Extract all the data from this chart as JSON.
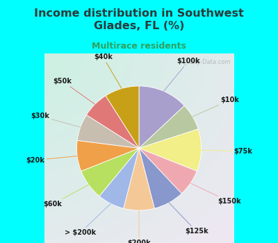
{
  "title": "Income distribution in Southwest\nGlades, FL (%)",
  "subtitle": "Multirace residents",
  "labels": [
    "$100k",
    "$10k",
    "$75k",
    "$150k",
    "$125k",
    "$200k",
    "> $200k",
    "$60k",
    "$20k",
    "$30k",
    "$50k",
    "$40k"
  ],
  "values": [
    13,
    7,
    11,
    7,
    8,
    8,
    7,
    8,
    8,
    7,
    7,
    9
  ],
  "colors": [
    "#a89fcc",
    "#b8c8a0",
    "#f2ee88",
    "#f0a8b0",
    "#8898cc",
    "#f5c898",
    "#a0b8e8",
    "#b8e060",
    "#f0a048",
    "#c8beb0",
    "#e07878",
    "#c8a018"
  ],
  "title_color": "#2a3a3a",
  "subtitle_color": "#30a060",
  "figsize": [
    4.0,
    3.5
  ],
  "dpi": 100
}
